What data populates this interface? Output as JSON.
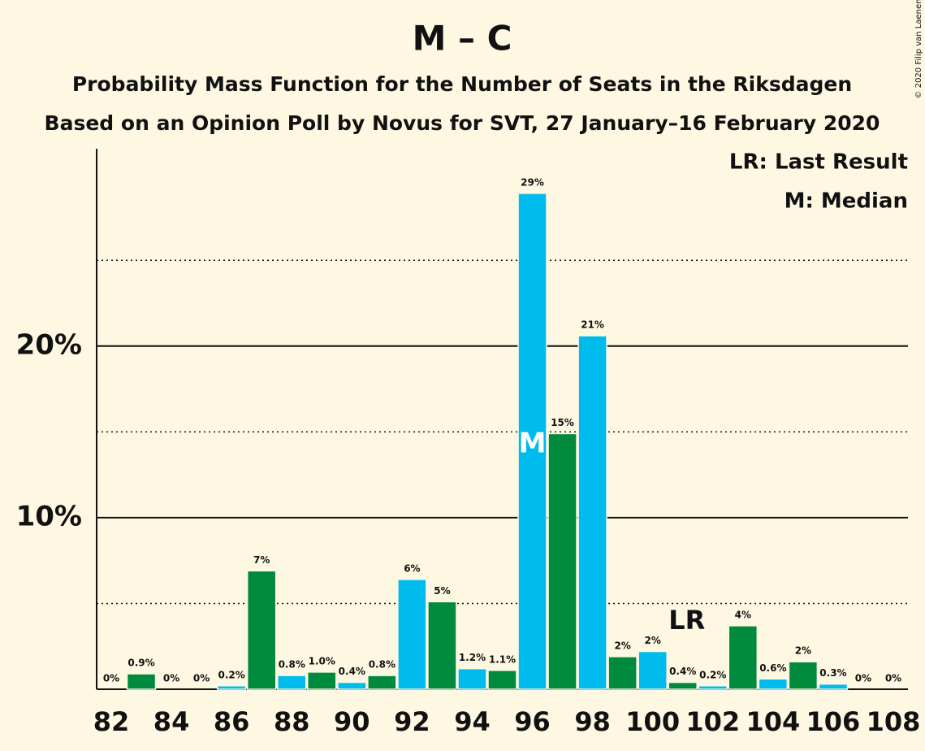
{
  "chart_data": {
    "type": "bar",
    "title": "M – C",
    "subtitle": "Probability Mass Function for the Number of Seats in the Riksdagen",
    "subtitle2": "Based on an Opinion Poll by Novus for SVT, 27 January–16 February 2020",
    "copyright": "© 2020 Filip van Laenen",
    "legend_lines": [
      "LR: Last Result",
      "M: Median"
    ],
    "categories": [
      82,
      null,
      84,
      null,
      86,
      null,
      88,
      null,
      90,
      null,
      92,
      null,
      94,
      null,
      96,
      null,
      98,
      null,
      100,
      null,
      102,
      null,
      104,
      null,
      106,
      null,
      108
    ],
    "values": [
      0,
      0.9,
      0,
      0,
      0.2,
      6.9,
      0.8,
      1.0,
      0.4,
      0.8,
      6.4,
      5.1,
      1.2,
      1.1,
      28.9,
      14.9,
      20.6,
      1.9,
      2.2,
      0.4,
      0.2,
      3.7,
      0.6,
      1.6,
      0.3,
      0,
      0
    ],
    "value_labels": [
      "0%",
      "0.9%",
      "0%",
      "0%",
      "0.2%",
      "7%",
      "0.8%",
      "1.0%",
      "0.4%",
      "0.8%",
      "6%",
      "5%",
      "1.2%",
      "1.1%",
      "29%",
      "15%",
      "21%",
      "2%",
      "2%",
      "0.4%",
      "0.2%",
      "4%",
      "0.6%",
      "2%",
      "0.3%",
      "0%",
      "0%"
    ],
    "colors": [
      "#00bbee",
      "#008a3e"
    ],
    "median_index": 14,
    "median_label": "M",
    "last_result_index": 19,
    "last_result_label": "LR",
    "ylim": [
      0,
      31.5
    ],
    "yticks": [
      {
        "value": 10,
        "label": "10%"
      },
      {
        "value": 20,
        "label": "20%"
      }
    ],
    "minor_yticks": [
      5,
      15,
      25
    ],
    "grid": true
  }
}
